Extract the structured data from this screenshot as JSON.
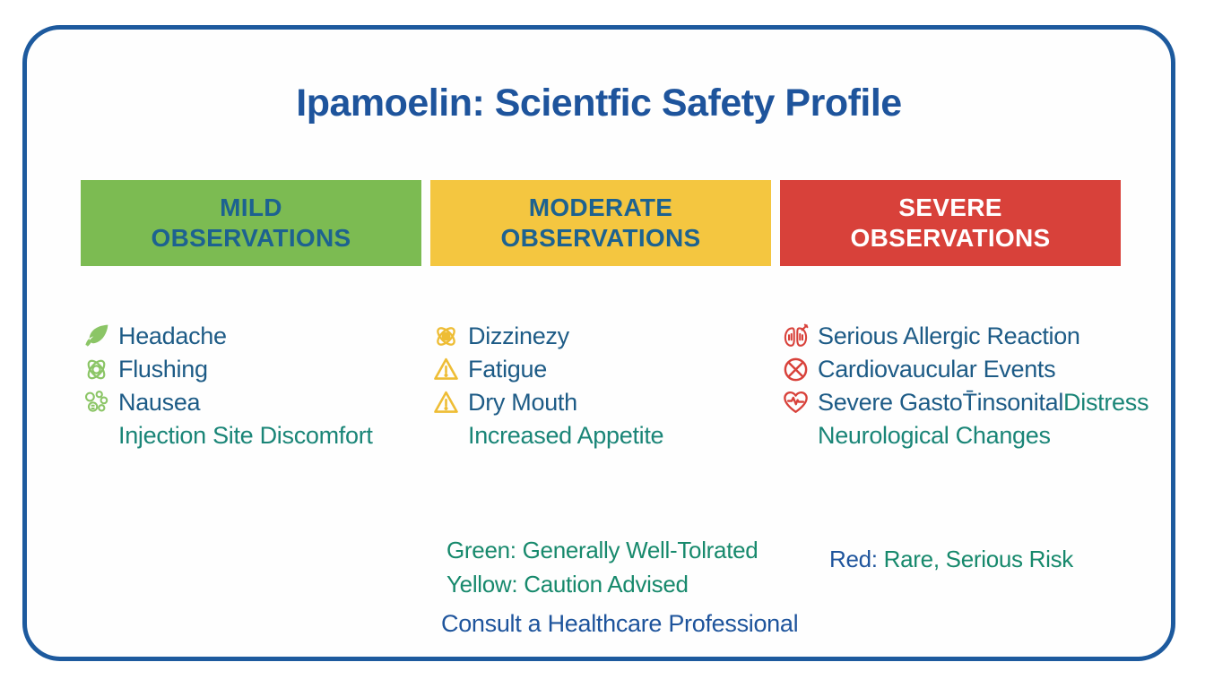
{
  "page": {
    "title": "Ipamoelin: Scientfic Safety Profile"
  },
  "colors": {
    "blue": "#1e549c",
    "item-blue": "#1d5b86",
    "teal": "#1a8577",
    "legend-green": "#17896c",
    "bar-green": "#7cbb52",
    "bar-yellow": "#f4c640",
    "bar-red": "#d8413a",
    "icon-green": "#8bc566",
    "icon-yellow": "#eebd35",
    "icon-red": "#d8413a",
    "border-blue": "#1d5a9e",
    "header-blue": "#1d6290",
    "white": "#ffffff"
  },
  "columns": [
    {
      "key": "mild",
      "header_line1": "MILD",
      "header_line2": "OBSERVATIONS",
      "bar": "green",
      "header_tone": "header-blue",
      "items": [
        {
          "icon": "leaf-icon",
          "parts": [
            {
              "text": "Headache",
              "tone": "item-blue"
            }
          ]
        },
        {
          "icon": "atom-outline-icon",
          "parts": [
            {
              "text": "Flushing",
              "tone": "item-blue"
            }
          ]
        },
        {
          "icon": "molecule-cluster-icon",
          "parts": [
            {
              "text": "Nausea",
              "tone": "item-blue"
            }
          ]
        },
        {
          "icon": "",
          "parts": [
            {
              "text": "Injection Site Discomfort",
              "tone": "teal"
            }
          ]
        }
      ]
    },
    {
      "key": "moderate",
      "header_line1": "MODERATE",
      "header_line2": "OBSERVATIONS",
      "bar": "yellow",
      "header_tone": "header-blue",
      "items": [
        {
          "icon": "atom-icon",
          "parts": [
            {
              "text": "Dizzinezy",
              "tone": "item-blue"
            }
          ]
        },
        {
          "icon": "warning-triangle-icon",
          "parts": [
            {
              "text": "Fatigue",
              "tone": "item-blue"
            }
          ]
        },
        {
          "icon": "warning-triangle-icon",
          "parts": [
            {
              "text": "Dry Mouth",
              "tone": "item-blue"
            }
          ]
        },
        {
          "icon": "",
          "parts": [
            {
              "text": "Increased Appetite",
              "tone": "teal"
            }
          ]
        }
      ]
    },
    {
      "key": "severe",
      "header_line1": "SEVERE",
      "header_line2": "OBSERVATIONS",
      "bar": "red",
      "header_tone": "white",
      "items": [
        {
          "icon": "allergic-reaction-icon",
          "parts": [
            {
              "text": "Serious Allergic Reaction",
              "tone": "item-blue"
            }
          ]
        },
        {
          "icon": "crossed-circle-icon",
          "parts": [
            {
              "text": "Cardiovaucular Events",
              "tone": "item-blue"
            }
          ]
        },
        {
          "icon": "heart-pulse-icon",
          "parts": [
            {
              "text": "Severe GastoT̄insonital ",
              "tone": "item-blue"
            },
            {
              "text": "Distress",
              "tone": "teal"
            }
          ]
        },
        {
          "icon": "",
          "parts": [
            {
              "text": "Neurological Changes",
              "tone": "teal"
            }
          ]
        }
      ]
    }
  ],
  "legend": {
    "left_lines": [
      {
        "parts": [
          {
            "text": "Green: Generally Well-Tolrated",
            "tone": "legend-green"
          }
        ]
      },
      {
        "parts": [
          {
            "text": "Yellow: Caution Advised",
            "tone": "legend-green"
          }
        ]
      }
    ],
    "right_line": {
      "parts": [
        {
          "text": "Red:",
          "tone": "blue"
        },
        {
          "text": " Rare, Serious Risk",
          "tone": "legend-green"
        }
      ]
    },
    "footer": "Consult a Healthcare Professional"
  }
}
